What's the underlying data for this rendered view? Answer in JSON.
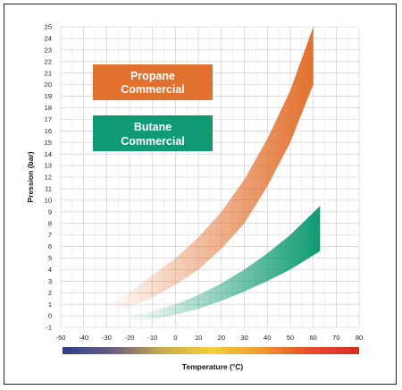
{
  "chart_data": {
    "type": "area",
    "xlabel": "Temperature (°C)",
    "ylabel": "Pression (bar)",
    "xlim": [
      -50,
      80
    ],
    "ylim": [
      -1,
      25
    ],
    "x_ticks": [
      -50,
      -40,
      -30,
      -20,
      -10,
      0,
      10,
      20,
      30,
      40,
      50,
      60,
      70,
      80
    ],
    "y_ticks": [
      -1,
      0,
      1,
      2,
      3,
      4,
      5,
      6,
      7,
      8,
      9,
      10,
      11,
      12,
      13,
      14,
      15,
      16,
      17,
      18,
      19,
      20,
      21,
      22,
      23,
      24,
      25
    ],
    "grid": true,
    "legend_placement": "top-left",
    "colorbar": {
      "position": "below-x-axis",
      "colors": [
        "#2e3f8f",
        "#6a5c7f",
        "#c9a850",
        "#f4d03a",
        "#f19a2e",
        "#e84a2a",
        "#d62d28"
      ]
    },
    "series": [
      {
        "name": "Propane Commercial",
        "color": "#e2702e",
        "x": [
          -30,
          -20,
          -10,
          0,
          10,
          20,
          30,
          40,
          50,
          60
        ],
        "upper": [
          0.8,
          2.0,
          3.5,
          5.0,
          6.8,
          9.0,
          11.8,
          15.3,
          19.5,
          25.0
        ],
        "lower": [
          0.2,
          0.8,
          1.6,
          2.7,
          4.0,
          5.8,
          8.0,
          11.2,
          15.0,
          20.0
        ]
      },
      {
        "name": "Butane Commercial",
        "color": "#0f9a73",
        "x": [
          -20,
          -10,
          0,
          10,
          20,
          30,
          40,
          50,
          63
        ],
        "upper": [
          0.0,
          0.4,
          1.0,
          1.8,
          2.8,
          4.0,
          5.4,
          7.0,
          9.5
        ],
        "lower": [
          -0.5,
          -0.3,
          0.1,
          0.6,
          1.3,
          2.1,
          3.0,
          4.0,
          5.6
        ]
      }
    ]
  }
}
